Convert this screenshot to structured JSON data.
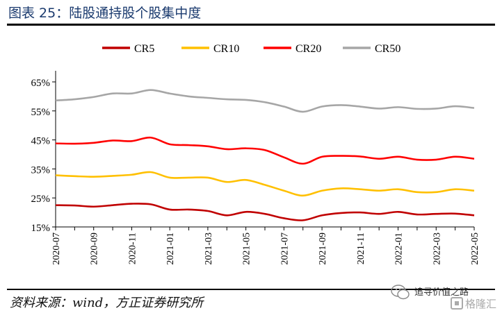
{
  "header": {
    "title": "图表 25：陆股通持股个股集中度"
  },
  "footer": {
    "source": "资料来源：wind，方正证券研究所",
    "watermark_text": "追寻价值之路"
  },
  "chart_data": {
    "type": "line",
    "title": "",
    "xlabel": "",
    "ylabel": "",
    "ylim": [
      15,
      65
    ],
    "yticks": [
      "15%",
      "25%",
      "35%",
      "45%",
      "55%",
      "65%"
    ],
    "yticks_values": [
      15,
      25,
      35,
      45,
      55,
      65
    ],
    "grid": false,
    "legend_position": "top",
    "x": [
      "2020-07",
      "2020-08",
      "2020-09",
      "2020-10",
      "2020-11",
      "2020-12",
      "2021-01",
      "2021-02",
      "2021-03",
      "2021-04",
      "2021-05",
      "2021-06",
      "2021-07",
      "2021-08",
      "2021-09",
      "2021-10",
      "2021-11",
      "2021-12",
      "2022-01",
      "2022-02",
      "2022-03",
      "2022-04",
      "2022-05"
    ],
    "xtick_labels": [
      "2020-07",
      "2020-09",
      "2020-11",
      "2021-01",
      "2021-03",
      "2021-05",
      "2021-07",
      "2021-09",
      "2021-11",
      "2022-01",
      "2022-03",
      "2022-05"
    ],
    "series": [
      {
        "name": "CR5",
        "color": "#c00000",
        "values": [
          22.5,
          22.4,
          22.0,
          22.5,
          23.0,
          22.8,
          21.0,
          21.0,
          20.5,
          19.0,
          20.2,
          19.5,
          18.0,
          17.3,
          19.0,
          19.8,
          20.0,
          19.5,
          20.2,
          19.3,
          19.5,
          19.6,
          19.0
        ]
      },
      {
        "name": "CR10",
        "color": "#ffc000",
        "values": [
          32.8,
          32.5,
          32.3,
          32.6,
          33.0,
          33.9,
          32.0,
          32.0,
          32.0,
          30.5,
          31.2,
          29.5,
          27.5,
          25.8,
          27.5,
          28.3,
          28.0,
          27.5,
          28.0,
          27.0,
          27.0,
          28.0,
          27.5
        ]
      },
      {
        "name": "CR20",
        "color": "#ff0000",
        "values": [
          43.8,
          43.7,
          44.0,
          44.8,
          44.6,
          45.8,
          43.5,
          43.2,
          42.8,
          41.8,
          42.1,
          41.5,
          39.0,
          36.8,
          39.2,
          39.5,
          39.3,
          38.5,
          39.2,
          38.2,
          38.2,
          39.2,
          38.5
        ]
      },
      {
        "name": "CR50",
        "color": "#a6a6a6",
        "values": [
          58.6,
          59.0,
          59.8,
          61.0,
          61.0,
          62.2,
          61.0,
          60.0,
          59.5,
          59.0,
          58.8,
          58.0,
          56.5,
          54.7,
          56.5,
          57.0,
          56.5,
          55.8,
          56.3,
          55.7,
          55.8,
          56.6,
          56.0
        ]
      }
    ]
  }
}
